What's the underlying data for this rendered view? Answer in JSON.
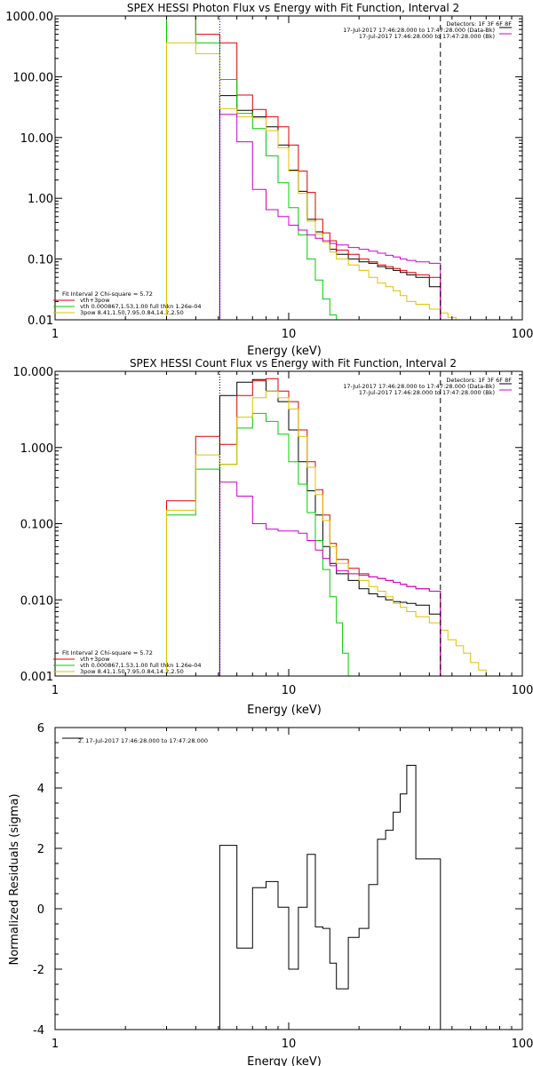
{
  "chart_data": [
    {
      "type": "line",
      "title": "SPEX HESSI Photon Flux vs Energy with Fit Function, Interval 2",
      "xlabel": "Energy (keV)",
      "ylabel": "",
      "xscale": "log",
      "yscale": "log",
      "xlim": [
        1,
        100
      ],
      "ylim": [
        0.01,
        1000
      ],
      "xticks": [
        "1",
        "10",
        "100"
      ],
      "yticks": [
        "0.01",
        "0.10",
        "1.00",
        "10.00",
        "100.00",
        "1000.00"
      ],
      "vlines": [
        {
          "x": 5.07,
          "color": "#0000bb",
          "style": "dotted"
        },
        {
          "x": 44.6,
          "color": "#000000",
          "style": "dashed"
        }
      ],
      "info": [
        "Detectors: 1F 3F 6F 8F",
        "17-Jul-2017 17:46:28.000 to 17:47:28.000 (Data-Bk)",
        "17-Jul-2017 17:46:28.000 to 17:47:28.000 (Bk)"
      ],
      "info_colors": [
        "#000000",
        "#000000",
        "#cc00cc"
      ],
      "fit_text": "Fit Interval  2   Chi-square = 5.72",
      "legend": [
        "vth+3pow",
        "vth 0.000867,1.53,1.00  full thkn 1.26e-04",
        "3pow 8.41,1.50,7.95,0.84,14.2,2.50"
      ],
      "legend_colors": [
        "#dd0000",
        "#00cc00",
        "#e0c000"
      ],
      "grid": false,
      "series": [
        {
          "color": "#000000",
          "edges": [
            5.07,
            6,
            7,
            8,
            9,
            10,
            11,
            12,
            13,
            14,
            15,
            16,
            18,
            20,
            22,
            24,
            26,
            28,
            30,
            32,
            35,
            40,
            44.6
          ],
          "values": [
            49,
            28,
            22,
            15,
            7.5,
            2.9,
            1.3,
            0.45,
            0.28,
            0.2,
            0.145,
            0.12,
            0.1,
            0.09,
            0.085,
            0.075,
            0.07,
            0.065,
            0.06,
            0.055,
            0.05,
            0.035
          ]
        },
        {
          "color": "#dd0000",
          "edges": [
            3,
            4,
            5.07,
            6,
            7,
            8,
            9,
            10,
            11,
            12,
            13,
            14,
            15,
            16,
            18,
            20,
            22,
            24,
            26,
            28,
            30,
            32,
            35,
            40,
            44.6
          ],
          "values": [
            1000,
            500,
            360,
            50,
            29,
            22,
            15,
            7.5,
            2.8,
            1.25,
            0.45,
            0.27,
            0.2,
            0.14,
            0.12,
            0.1,
            0.09,
            0.08,
            0.075,
            0.07,
            0.065,
            0.06,
            0.055,
            0.05
          ]
        },
        {
          "color": "#00cc00",
          "edges": [
            3,
            4,
            5.07,
            6,
            7,
            8,
            9,
            10,
            11,
            12,
            13,
            14,
            15,
            16,
            17
          ],
          "values": [
            1000,
            360,
            90,
            25,
            14,
            5,
            1.8,
            0.7,
            0.25,
            0.1,
            0.045,
            0.022,
            0.012,
            0.01
          ]
        },
        {
          "color": "#e0c000",
          "edges": [
            3,
            4,
            5.07,
            6,
            7,
            8,
            9,
            10,
            11,
            12,
            13,
            14,
            15,
            16,
            18,
            20,
            22,
            24,
            26,
            28,
            30,
            32,
            35,
            40,
            44.6,
            48,
            52,
            56,
            60
          ],
          "values": [
            360,
            240,
            30,
            22,
            21,
            13,
            6.8,
            2.8,
            1.2,
            0.42,
            0.26,
            0.19,
            0.13,
            0.1,
            0.08,
            0.065,
            0.05,
            0.04,
            0.035,
            0.03,
            0.025,
            0.02,
            0.018,
            0.015,
            0.013,
            0.011,
            0.01,
            0.009
          ]
        },
        {
          "color": "#cc00cc",
          "edges": [
            5.07,
            6,
            7,
            8,
            9,
            10,
            11,
            12,
            13,
            14,
            15,
            16,
            18,
            20,
            22,
            24,
            26,
            28,
            30,
            32,
            35,
            40,
            44.6
          ],
          "values": [
            24,
            8.5,
            1.4,
            0.65,
            0.5,
            0.36,
            0.3,
            0.25,
            0.22,
            0.2,
            0.18,
            0.17,
            0.155,
            0.145,
            0.135,
            0.125,
            0.115,
            0.108,
            0.1,
            0.095,
            0.09,
            0.085
          ]
        }
      ]
    },
    {
      "type": "line",
      "title": "SPEX HESSI Count Flux vs Energy with Fit Function, Interval 2",
      "xlabel": "Energy (keV)",
      "ylabel": "",
      "xscale": "log",
      "yscale": "log",
      "xlim": [
        1,
        100
      ],
      "ylim": [
        0.001,
        10
      ],
      "xticks": [
        "1",
        "10",
        "100"
      ],
      "yticks": [
        "0.001",
        "0.010",
        "0.100",
        "1.000",
        "10.000"
      ],
      "vlines": [
        {
          "x": 5.07,
          "color": "#000000",
          "style": "dotted"
        },
        {
          "x": 5.07,
          "color": "#0000bb",
          "style": "dotted-lower"
        },
        {
          "x": 44.6,
          "color": "#000000",
          "style": "dashed"
        }
      ],
      "info": [
        "Detectors: 1F 3F 6F 8F",
        "17-Jul-2017 17:46:28.000 to 17:47:28.000 (Data-Bk)",
        "17-Jul-2017 17:46:28.000 to 17:47:28.000 (Bk)"
      ],
      "info_colors": [
        "#000000",
        "#000000",
        "#cc00cc"
      ],
      "fit_text": "Fit Interval  2   Chi-square = 5.72",
      "legend": [
        "vth+3pow",
        "vth 0.000867,1.53,1.00  full thkn 1.26e-04",
        "3pow 8.41,1.50,7.95,0.84,14.2,2.50"
      ],
      "legend_colors": [
        "#dd0000",
        "#00cc00",
        "#e0c000"
      ],
      "grid": false,
      "series": [
        {
          "color": "#000000",
          "edges": [
            5.07,
            6,
            7,
            8,
            9,
            10,
            11,
            12,
            13,
            14,
            15,
            16,
            18,
            20,
            22,
            24,
            26,
            28,
            30,
            32,
            35,
            40,
            44.6
          ],
          "values": [
            4.8,
            7.2,
            7.8,
            5.5,
            4.0,
            1.7,
            0.65,
            0.27,
            0.13,
            0.05,
            0.03,
            0.022,
            0.018,
            0.014,
            0.012,
            0.011,
            0.01,
            0.0095,
            0.0093,
            0.009,
            0.0085,
            0.0065
          ]
        },
        {
          "color": "#dd0000",
          "edges": [
            3,
            4,
            5.07,
            6,
            7,
            8,
            9,
            10,
            11,
            12,
            13,
            14,
            15,
            16,
            18,
            20,
            22,
            24,
            26,
            28,
            30,
            32,
            35,
            40,
            44.6
          ],
          "values": [
            0.2,
            1.4,
            1.1,
            4.8,
            7.5,
            8.0,
            5.5,
            4.0,
            1.7,
            0.65,
            0.28,
            0.13,
            0.055,
            0.034,
            0.026,
            0.022,
            0.02,
            0.019,
            0.018,
            0.017,
            0.016,
            0.015,
            0.014,
            0.013
          ]
        },
        {
          "color": "#00cc00",
          "edges": [
            3,
            4,
            5.07,
            6,
            7,
            8,
            9,
            10,
            11,
            12,
            13,
            14,
            15,
            16,
            17,
            18,
            20
          ],
          "values": [
            0.13,
            0.52,
            0.6,
            1.8,
            2.8,
            2.2,
            1.5,
            0.65,
            0.33,
            0.14,
            0.06,
            0.025,
            0.011,
            0.005,
            0.002,
            0.001
          ]
        },
        {
          "color": "#e0c000",
          "edges": [
            3,
            4,
            5.07,
            6,
            7,
            8,
            9,
            10,
            11,
            12,
            13,
            14,
            15,
            16,
            18,
            20,
            22,
            24,
            26,
            28,
            30,
            32,
            35,
            40,
            44.6,
            48,
            52,
            56,
            60,
            65,
            70,
            75
          ],
          "values": [
            0.15,
            0.8,
            0.6,
            2.5,
            4.5,
            5.5,
            4.5,
            3.2,
            1.4,
            0.55,
            0.24,
            0.11,
            0.05,
            0.03,
            0.022,
            0.018,
            0.015,
            0.013,
            0.011,
            0.009,
            0.008,
            0.007,
            0.006,
            0.005,
            0.004,
            0.003,
            0.0025,
            0.002,
            0.0015,
            0.0012,
            0.001
          ]
        },
        {
          "color": "#cc00cc",
          "edges": [
            5.07,
            6,
            7,
            8,
            9,
            10,
            11,
            12,
            13,
            14,
            15,
            16,
            18,
            20,
            22,
            24,
            26,
            28,
            30,
            32,
            35,
            40,
            44.6
          ],
          "values": [
            0.35,
            0.23,
            0.1,
            0.085,
            0.08,
            0.08,
            0.075,
            0.06,
            0.045,
            0.035,
            0.028,
            0.024,
            0.022,
            0.021,
            0.02,
            0.019,
            0.018,
            0.017,
            0.016,
            0.015,
            0.014,
            0.013
          ]
        }
      ]
    },
    {
      "type": "line",
      "title": "",
      "xlabel": "Energy (keV)",
      "ylabel": "Normalized Residuals (sigma)",
      "xscale": "log",
      "yscale": "linear",
      "xlim": [
        1,
        100
      ],
      "ylim": [
        -4,
        6
      ],
      "xticks": [
        "1",
        "10",
        "100"
      ],
      "yticks": [
        "-4",
        "-2",
        "0",
        "2",
        "4",
        "6"
      ],
      "info": [],
      "legend": [
        "2. 17-Jul-2017 17:46:28.000 to 17:47:28.000"
      ],
      "legend_colors": [
        "#000000"
      ],
      "grid": false,
      "series": [
        {
          "color": "#000000",
          "edges": [
            5.07,
            6,
            7,
            8,
            9,
            10,
            11,
            12,
            13,
            14,
            15,
            16,
            18,
            20,
            22,
            24,
            26,
            28,
            30,
            32,
            35,
            40,
            44.6
          ],
          "values": [
            2.1,
            -1.3,
            0.7,
            0.9,
            0.05,
            -2.0,
            0.05,
            1.8,
            -0.6,
            -0.65,
            -1.8,
            -2.65,
            -0.95,
            -0.65,
            0.8,
            2.3,
            2.6,
            3.2,
            3.8,
            4.75,
            1.65,
            1.65
          ]
        }
      ]
    }
  ]
}
